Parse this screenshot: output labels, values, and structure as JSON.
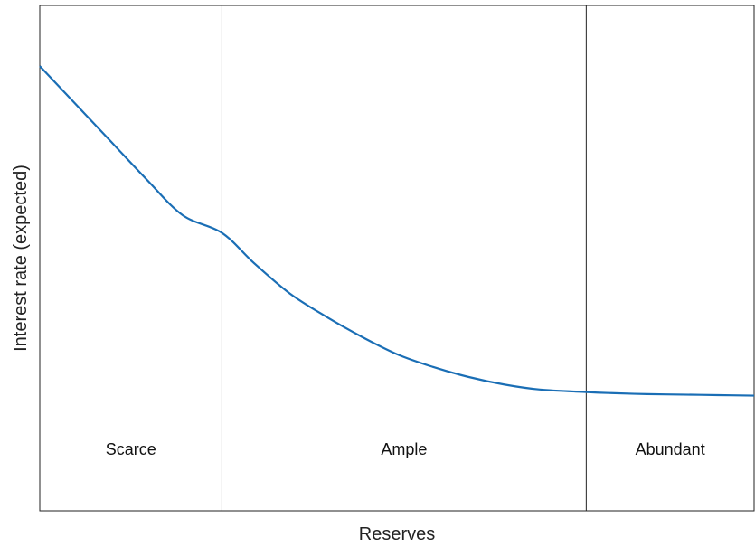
{
  "chart_data": {
    "type": "line",
    "title": "",
    "xlabel": "Reserves",
    "ylabel": "Interest rate (expected)",
    "xlim": [
      0,
      1
    ],
    "ylim": [
      0,
      1
    ],
    "grid": false,
    "legend": "none",
    "line_color": "#1a6eb5",
    "regions": [
      {
        "label": "Scarce",
        "start": 0.0,
        "end": 0.255
      },
      {
        "label": "Ample",
        "start": 0.255,
        "end": 0.765
      },
      {
        "label": "Abundant",
        "start": 0.765,
        "end": 1.0
      }
    ],
    "series": [
      {
        "x": [
          0.0,
          0.05,
          0.1,
          0.15,
          0.2,
          0.255,
          0.3,
          0.35,
          0.4,
          0.45,
          0.5,
          0.55,
          0.6,
          0.65,
          0.7,
          0.765,
          0.8,
          0.85,
          0.9,
          0.95,
          1.0
        ],
        "y": [
          0.88,
          0.805,
          0.73,
          0.655,
          0.585,
          0.55,
          0.49,
          0.43,
          0.385,
          0.345,
          0.31,
          0.285,
          0.265,
          0.25,
          0.24,
          0.235,
          0.233,
          0.231,
          0.23,
          0.229,
          0.228
        ]
      }
    ]
  }
}
